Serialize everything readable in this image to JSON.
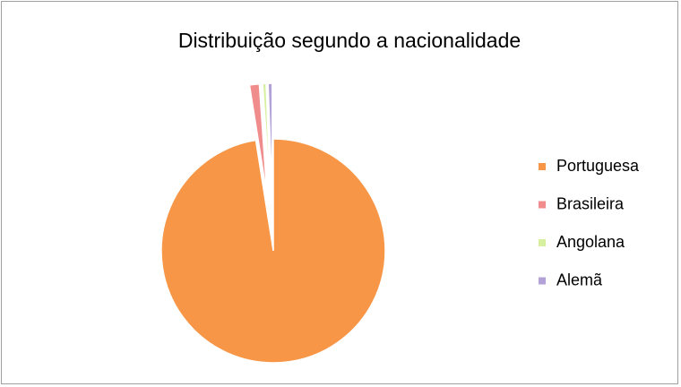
{
  "chart_data": {
    "type": "pie",
    "title": "Distribuição segundo a nacionalidade",
    "categories": [
      "Portuguesa",
      "Brasileira",
      "Angolana",
      "Alemã"
    ],
    "values": [
      97.5,
      1.4,
      0.5,
      0.6
    ],
    "colors": [
      "#f79646",
      "#f08c8c",
      "#d6f0a0",
      "#b3a2d7"
    ],
    "legend": "right"
  }
}
